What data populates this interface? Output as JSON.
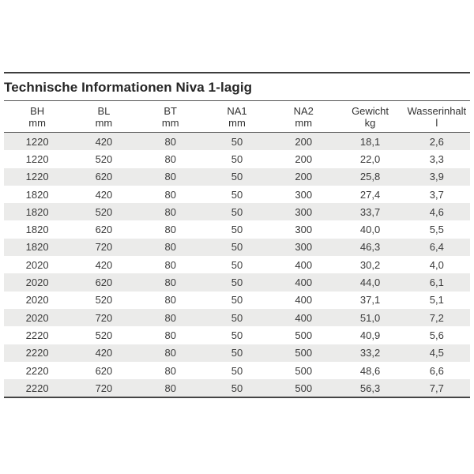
{
  "title": "Technische Informationen Niva 1-lagig",
  "table": {
    "columns": [
      {
        "label": "BH",
        "unit": "mm"
      },
      {
        "label": "BL",
        "unit": "mm"
      },
      {
        "label": "BT",
        "unit": "mm"
      },
      {
        "label": "NA1",
        "unit": "mm"
      },
      {
        "label": "NA2",
        "unit": "mm"
      },
      {
        "label": "Gewicht",
        "unit": "kg"
      },
      {
        "label": "Wasserinhalt",
        "unit": "l"
      }
    ],
    "rows": [
      [
        "1220",
        "420",
        "80",
        "50",
        "200",
        "18,1",
        "2,6"
      ],
      [
        "1220",
        "520",
        "80",
        "50",
        "200",
        "22,0",
        "3,3"
      ],
      [
        "1220",
        "620",
        "80",
        "50",
        "200",
        "25,8",
        "3,9"
      ],
      [
        "1820",
        "420",
        "80",
        "50",
        "300",
        "27,4",
        "3,7"
      ],
      [
        "1820",
        "520",
        "80",
        "50",
        "300",
        "33,7",
        "4,6"
      ],
      [
        "1820",
        "620",
        "80",
        "50",
        "300",
        "40,0",
        "5,5"
      ],
      [
        "1820",
        "720",
        "80",
        "50",
        "300",
        "46,3",
        "6,4"
      ],
      [
        "2020",
        "420",
        "80",
        "50",
        "400",
        "30,2",
        "4,0"
      ],
      [
        "2020",
        "620",
        "80",
        "50",
        "400",
        "44,0",
        "6,1"
      ],
      [
        "2020",
        "520",
        "80",
        "50",
        "400",
        "37,1",
        "5,1"
      ],
      [
        "2020",
        "720",
        "80",
        "50",
        "400",
        "51,0",
        "7,2"
      ],
      [
        "2220",
        "520",
        "80",
        "50",
        "500",
        "40,9",
        "5,6"
      ],
      [
        "2220",
        "420",
        "80",
        "50",
        "500",
        "33,2",
        "4,5"
      ],
      [
        "2220",
        "620",
        "80",
        "50",
        "500",
        "48,6",
        "6,6"
      ],
      [
        "2220",
        "720",
        "80",
        "50",
        "500",
        "56,3",
        "7,7"
      ]
    ],
    "zebra_color": "#ebebea",
    "rule_color": "#4a4a4a",
    "text_color": "#3b3b3b",
    "title_color": "#262626"
  }
}
